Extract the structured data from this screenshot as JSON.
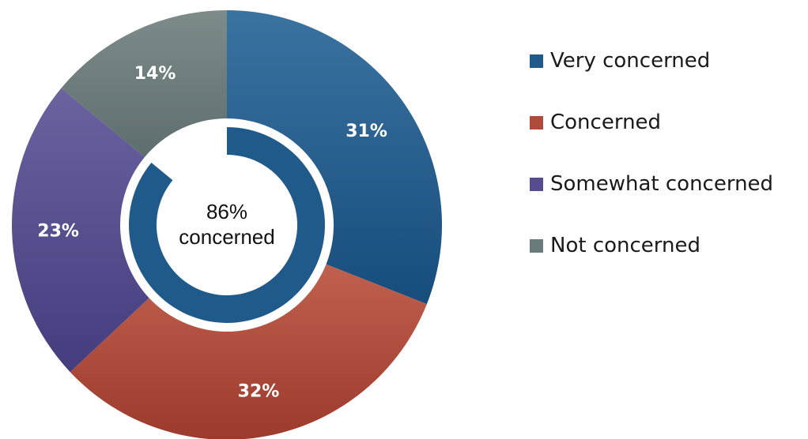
{
  "chart_data": {
    "type": "pie",
    "style": "donut",
    "title": "",
    "slices": [
      {
        "name": "Very concerned",
        "value": 31,
        "label": "31%",
        "color": "#1f5a8a"
      },
      {
        "name": "Concerned",
        "value": 32,
        "label": "32%",
        "color": "#b04a3a"
      },
      {
        "name": "Somewhat concerned",
        "value": 23,
        "label": "23%",
        "color": "#544d8e"
      },
      {
        "name": "Not concerned",
        "value": 14,
        "label": "14%",
        "color": "#6b7a7a"
      }
    ],
    "center": {
      "value": 86,
      "value_label": "86%",
      "text": "concerned",
      "color": "#1f5a8a"
    },
    "legend_position": "right"
  }
}
